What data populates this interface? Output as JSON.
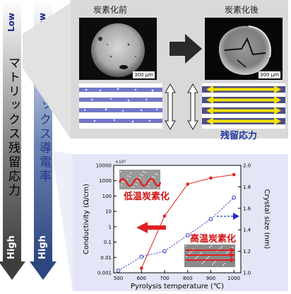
{
  "left_arrows": {
    "stress": {
      "label": "マトリックス残留応力",
      "low_label": "Low",
      "high_label": "High"
    },
    "conductivity": {
      "label": "マトリックス導電率",
      "low_label": "Low",
      "high_label": "High"
    }
  },
  "top_panel": {
    "before_title": "炭素化前",
    "after_title": "炭素化後",
    "before_scale": "300 μm",
    "after_scale": "300 μm",
    "residual_stress_label": "残留応力"
  },
  "chart_data": {
    "type": "line",
    "x_axis": {
      "label": "Pyrolysis temperature (℃)",
      "ticks": [
        500,
        600,
        700,
        800,
        900,
        1000
      ],
      "range": [
        480,
        1030
      ]
    },
    "y_left": {
      "label": "Conductivity (Ω/cm)",
      "scale": "log",
      "ticks": [
        "10000",
        "1000",
        "100",
        "10",
        "1",
        "0.1",
        "0.01",
        "0.001"
      ],
      "range": [
        0.001,
        10000
      ]
    },
    "y_right": {
      "label": "Crystal size (nm)",
      "scale": "linear",
      "ticks": [
        "2.0",
        "1.8",
        "1.6",
        "1.4",
        "1.2",
        "1.0"
      ],
      "range": [
        1.0,
        2.0
      ]
    },
    "inset_exponent": "×10³",
    "series": [
      {
        "axis": "left",
        "color": "#e02020",
        "style": "solid",
        "x": [
          600,
          700,
          800,
          900,
          1000
        ],
        "y": [
          0.002,
          5,
          600,
          1500,
          2500
        ]
      },
      {
        "axis": "right",
        "color": "#2030c0",
        "style": "dotted",
        "x": [
          500,
          600,
          700,
          800,
          900,
          1000
        ],
        "y": [
          1.02,
          1.15,
          1.2,
          1.35,
          1.5,
          1.7
        ]
      }
    ],
    "annotations": {
      "low_temp": "低温炭素化",
      "high_temp": "高温炭素化"
    }
  }
}
